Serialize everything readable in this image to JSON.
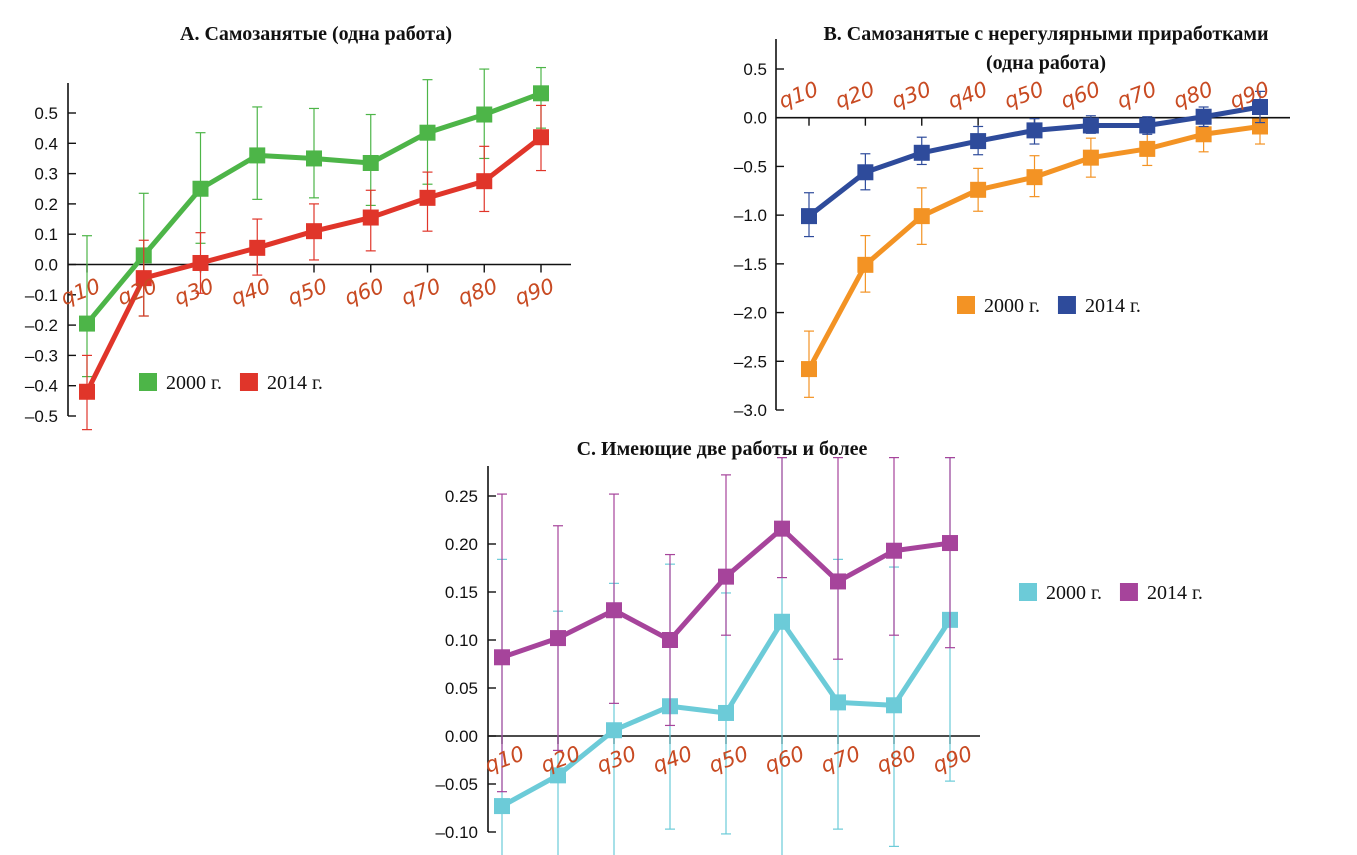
{
  "chart_data": [
    {
      "id": "A",
      "type": "line",
      "title": "А. Самозанятые (одна работа)",
      "title_lines": [
        "А. Самозанятые (одна работа)"
      ],
      "categories": [
        "q10",
        "q20",
        "q30",
        "q40",
        "q50",
        "q60",
        "q70",
        "q80",
        "q90"
      ],
      "ylim": [
        -0.5,
        0.5
      ],
      "yticks": [
        0.5,
        0.4,
        0.3,
        0.2,
        0.1,
        0.0,
        -0.1,
        -0.2,
        -0.3,
        -0.4,
        -0.5
      ],
      "ytick_labels": [
        "0.5",
        "0.4",
        "0.3",
        "0.2",
        "0.1",
        "0.0",
        "–0.1",
        "–0.2",
        "–0.3",
        "–0.4",
        "–0.5"
      ],
      "legend": "below",
      "series": [
        {
          "name": "2000 г.",
          "color": "#4db548",
          "values": [
            -0.195,
            0.03,
            0.25,
            0.36,
            0.35,
            0.335,
            0.435,
            0.495,
            0.565
          ],
          "err_low": [
            -0.37,
            -0.17,
            0.07,
            0.215,
            0.22,
            0.195,
            0.265,
            0.35,
            0.45
          ],
          "err_high": [
            0.095,
            0.235,
            0.435,
            0.52,
            0.515,
            0.495,
            0.61,
            0.645,
            0.65
          ]
        },
        {
          "name": "2014 г.",
          "color": "#e0352a",
          "values": [
            -0.42,
            -0.045,
            0.005,
            0.055,
            0.11,
            0.155,
            0.22,
            0.275,
            0.42
          ],
          "err_low": [
            -0.545,
            -0.17,
            -0.095,
            -0.035,
            0.015,
            0.045,
            0.11,
            0.175,
            0.31
          ],
          "err_high": [
            -0.3,
            0.08,
            0.105,
            0.15,
            0.2,
            0.245,
            0.305,
            0.39,
            0.525
          ]
        }
      ]
    },
    {
      "id": "B",
      "type": "line",
      "title": "В. Самозанятые с нерегулярными приработками (одна работа)",
      "title_lines": [
        "В. Самозанятые с нерегулярными приработками",
        "(одна работа)"
      ],
      "categories": [
        "q10",
        "q20",
        "q30",
        "q40",
        "q50",
        "q60",
        "q70",
        "q80",
        "q90"
      ],
      "ylim": [
        -3.0,
        0.5
      ],
      "yticks": [
        0.5,
        0.0,
        -0.5,
        -1.0,
        -1.5,
        -2.0,
        -2.5,
        -3.0
      ],
      "ytick_labels": [
        "0.5",
        "0.0",
        "–0.5",
        "–1.0",
        "–1.5",
        "–2.0",
        "–2.5",
        "–3.0"
      ],
      "legend": "center",
      "series": [
        {
          "name": "2000 г.",
          "color": "#f39324",
          "values": [
            -2.58,
            -1.51,
            -1.01,
            -0.74,
            -0.61,
            -0.41,
            -0.32,
            -0.17,
            -0.09
          ],
          "err_low": [
            -2.87,
            -1.79,
            -1.3,
            -0.96,
            -0.81,
            -0.61,
            -0.49,
            -0.35,
            -0.27
          ],
          "err_high": [
            -2.19,
            -1.21,
            -0.72,
            -0.52,
            -0.39,
            -0.21,
            -0.15,
            0.01,
            0.09
          ]
        },
        {
          "name": "2014 г.",
          "color": "#2e4b9b",
          "values": [
            -1.01,
            -0.56,
            -0.36,
            -0.24,
            -0.13,
            -0.08,
            -0.08,
            0.01,
            0.11
          ],
          "err_low": [
            -1.22,
            -0.74,
            -0.48,
            -0.38,
            -0.27,
            -0.16,
            -0.17,
            -0.09,
            -0.05
          ],
          "err_high": [
            -0.77,
            -0.37,
            -0.2,
            -0.09,
            -0.01,
            0.02,
            0.01,
            0.11,
            0.27
          ]
        }
      ]
    },
    {
      "id": "C",
      "type": "line",
      "title": "С. Имеющие две работы и более",
      "title_lines": [
        "С. Имеющие две работы и более"
      ],
      "categories": [
        "q10",
        "q20",
        "q30",
        "q40",
        "q50",
        "q60",
        "q70",
        "q80",
        "q90"
      ],
      "ylim": [
        -0.1,
        0.25
      ],
      "yticks": [
        0.25,
        0.2,
        0.15,
        0.1,
        0.05,
        0.0,
        -0.05,
        -0.1
      ],
      "ytick_labels": [
        "0.25",
        "0.20",
        "0.15",
        "0.10",
        "0.05",
        "0.00",
        "–0.05",
        "–0.10"
      ],
      "legend": "right",
      "series": [
        {
          "name": "2000 г.",
          "color": "#6ccbd8",
          "values": [
            -0.073,
            -0.041,
            0.006,
            0.031,
            0.024,
            0.119,
            0.035,
            0.032,
            0.121
          ],
          "err_low": [
            -0.13,
            -0.13,
            -0.13,
            -0.097,
            -0.102,
            -0.13,
            -0.097,
            -0.115,
            -0.047
          ],
          "err_high": [
            0.184,
            0.13,
            0.159,
            0.179,
            0.149,
            0.29,
            0.184,
            0.176,
            0.29
          ]
        },
        {
          "name": "2014 г.",
          "color": "#a6449b",
          "values": [
            0.082,
            0.102,
            0.131,
            0.1,
            0.166,
            0.216,
            0.161,
            0.193,
            0.201
          ],
          "err_low": [
            -0.058,
            -0.015,
            0.034,
            0.011,
            0.105,
            0.165,
            0.08,
            0.105,
            0.092
          ],
          "err_high": [
            0.252,
            0.219,
            0.252,
            0.189,
            0.272,
            0.29,
            0.29,
            0.29,
            0.29
          ]
        }
      ]
    }
  ]
}
